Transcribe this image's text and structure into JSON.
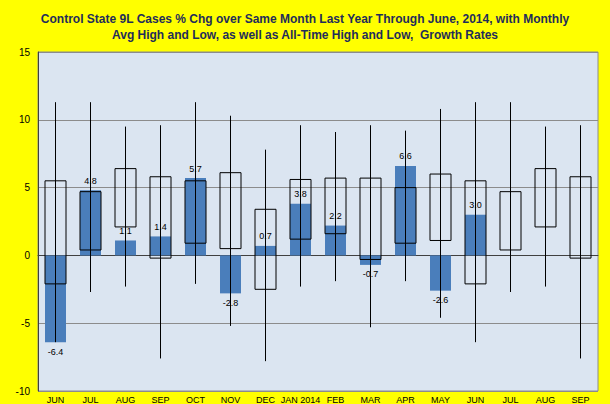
{
  "chart_data": {
    "type": "bar",
    "title": "Control State 9L Cases % Chg over Same Month Last Year Through June, 2014, with Monthly\nAvg High and Low, as well as All-Time High and Low,  Growth Rates",
    "categories": [
      "JUN",
      "JUL",
      "AUG",
      "SEP",
      "OCT",
      "NOV",
      "DEC",
      "JAN 2014",
      "FEB",
      "MAR",
      "APR",
      "MAY",
      "JUN",
      "JUL",
      "AUG",
      "SEP"
    ],
    "values": [
      -6.4,
      4.8,
      1.1,
      1.4,
      5.7,
      -2.8,
      0.7,
      3.8,
      2.2,
      -0.7,
      6.6,
      -2.6,
      3.0,
      null,
      null,
      null
    ],
    "value_labels": [
      "-6.4",
      "4.8",
      "1.1",
      "1.4",
      "5.7",
      "-2.8",
      "0.7",
      "3.8",
      "2.2",
      "-0.7",
      "6.6",
      "-2.6",
      "3.0",
      null,
      null,
      null
    ],
    "avg_low": [
      -2.1,
      0.4,
      2.1,
      -0.2,
      0.9,
      0.5,
      -2.5,
      1.2,
      1.6,
      -0.3,
      0.9,
      1.1,
      -2.1,
      0.4,
      2.1,
      -0.2
    ],
    "avg_high": [
      5.5,
      4.7,
      6.4,
      5.8,
      5.5,
      6.1,
      3.4,
      5.6,
      5.7,
      5.7,
      5.0,
      6.0,
      5.5,
      4.7,
      6.4,
      5.8
    ],
    "all_time_low": [
      -6.4,
      -2.7,
      -2.3,
      -7.6,
      -2.1,
      -5.2,
      -7.8,
      -2.3,
      -1.9,
      -5.3,
      -1.9,
      -4.6,
      -6.4,
      -2.7,
      -2.3,
      -7.6
    ],
    "all_time_high": [
      11.3,
      11.3,
      9.5,
      9.6,
      11.3,
      10.3,
      7.8,
      9.6,
      9.1,
      9.6,
      9.2,
      10.8,
      11.3,
      11.3,
      9.5,
      9.6
    ],
    "color": "#4a7ebb",
    "ylim": [
      -10,
      15
    ],
    "yticks": [
      -10,
      -5,
      0,
      5,
      10,
      15
    ],
    "grid": true,
    "data_labels": true
  }
}
